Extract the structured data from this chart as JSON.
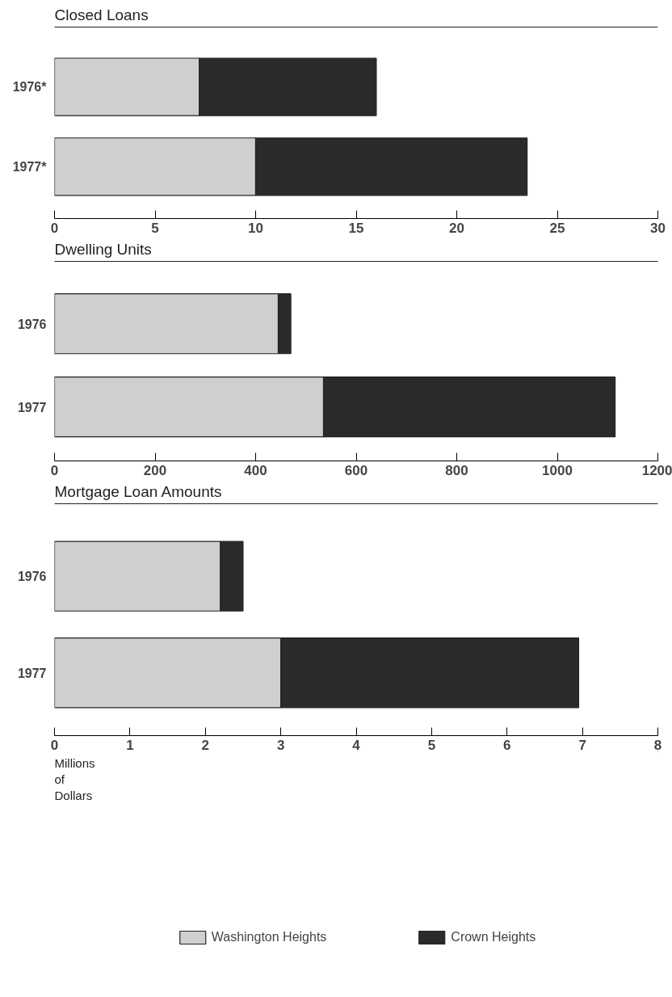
{
  "chart_data": [
    {
      "type": "bar",
      "orientation": "horizontal",
      "stacked": true,
      "title": "Closed Loans",
      "categories": [
        "1976*",
        "1977*"
      ],
      "xlim": [
        0,
        30
      ],
      "xticks": [
        0,
        5,
        10,
        15,
        20,
        25,
        30
      ],
      "grid": false,
      "legend": false,
      "series": [
        {
          "color": "#cfcfcf",
          "values": [
            7.2,
            10.0
          ]
        },
        {
          "color": "#2a2a2a",
          "values": [
            8.8,
            13.5
          ]
        }
      ]
    },
    {
      "type": "bar",
      "orientation": "horizontal",
      "stacked": true,
      "title": "Dwelling Units",
      "categories": [
        "1976",
        "1977"
      ],
      "xlim": [
        0,
        1200
      ],
      "xticks": [
        0,
        200,
        400,
        600,
        800,
        1000,
        1200
      ],
      "grid": false,
      "legend": false,
      "series": [
        {
          "color": "#cfcfcf",
          "values": [
            445,
            535
          ]
        },
        {
          "color": "#2a2a2a",
          "values": [
            25,
            580
          ]
        }
      ]
    },
    {
      "type": "bar",
      "orientation": "horizontal",
      "stacked": true,
      "title": "Mortgage Loan Amounts",
      "xlabel": "Millions of Dollars",
      "categories": [
        "1976",
        "1977"
      ],
      "xlim": [
        0,
        8
      ],
      "xticks": [
        0,
        1,
        2,
        3,
        4,
        5,
        6,
        7,
        8
      ],
      "grid": false,
      "legend": "bottom",
      "series": [
        {
          "name": "Washington Heights",
          "color": "#cfcfcf",
          "values": [
            2.2,
            3.0
          ]
        },
        {
          "name": "Crown Heights",
          "color": "#2a2a2a",
          "values": [
            0.3,
            3.95
          ]
        }
      ]
    }
  ]
}
